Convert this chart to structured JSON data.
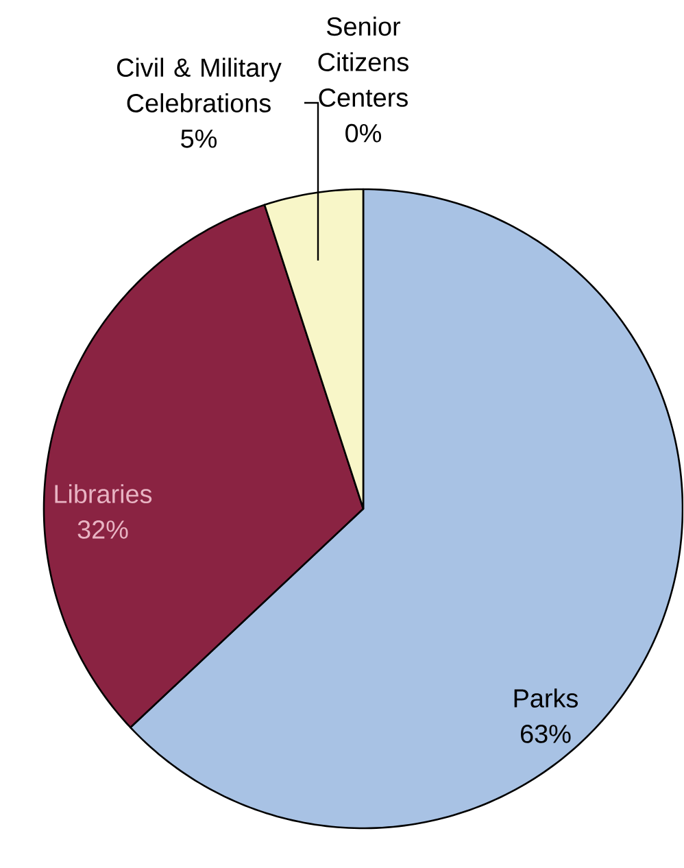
{
  "chart_data": {
    "type": "pie",
    "categories": [
      "Parks",
      "Libraries",
      "Civil & Military Celebrations",
      "Senior Citizens Centers"
    ],
    "values": [
      63,
      32,
      5,
      0
    ],
    "value_labels": [
      "63%",
      "32%",
      "5%",
      "0%"
    ],
    "colors": [
      "#a8c2e4",
      "#8a2342",
      "#f8f6c8",
      "#e0e0e0"
    ]
  }
}
